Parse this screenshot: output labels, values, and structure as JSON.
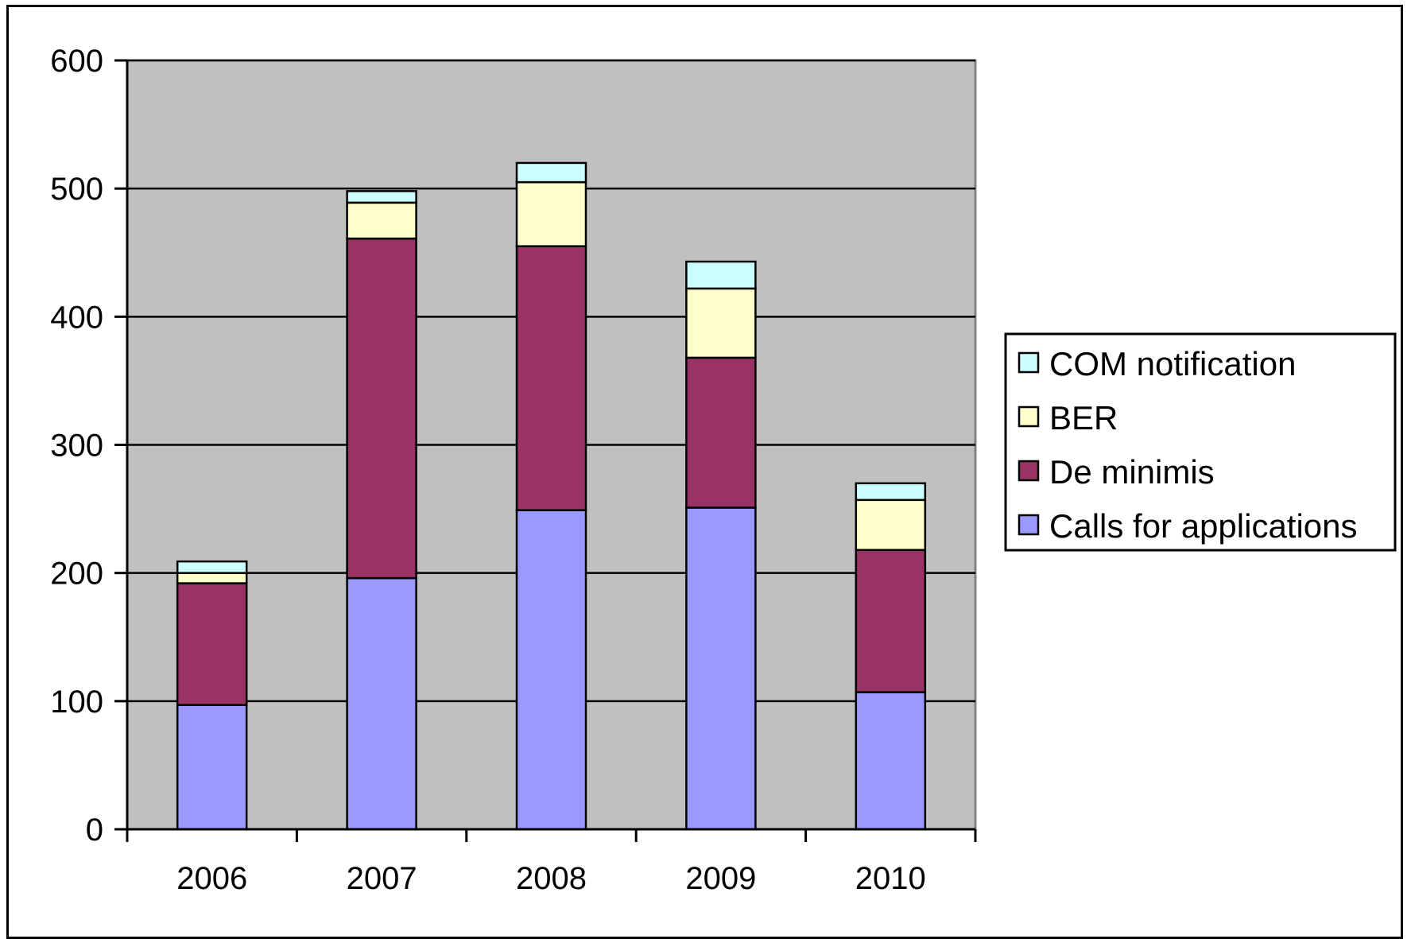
{
  "chart_data": {
    "type": "bar",
    "stacked": true,
    "title": "",
    "xlabel": "",
    "ylabel": "",
    "categories": [
      "2006",
      "2007",
      "2008",
      "2009",
      "2010"
    ],
    "series": [
      {
        "name": "Calls for applications",
        "color": "#9999ff",
        "values": [
          97,
          196,
          249,
          251,
          107
        ]
      },
      {
        "name": "De minimis",
        "color": "#993366",
        "values": [
          95,
          265,
          206,
          117,
          111
        ]
      },
      {
        "name": "BER",
        "color": "#ffffcc",
        "values": [
          8,
          28,
          50,
          54,
          39
        ]
      },
      {
        "name": "COM notification",
        "color": "#ccffff",
        "values": [
          9,
          9,
          15,
          21,
          13
        ]
      }
    ],
    "ylim": [
      0,
      600
    ],
    "yticks": [
      0,
      100,
      200,
      300,
      400,
      500,
      600
    ],
    "ytick_labels": [
      "0",
      "100",
      "200",
      "300",
      "400",
      "500",
      "600"
    ],
    "grid": true,
    "plot_background": "#c0c0c0",
    "legend_position": "right",
    "legend_order": [
      "COM notification",
      "BER",
      "De minimis",
      "Calls for applications"
    ]
  }
}
